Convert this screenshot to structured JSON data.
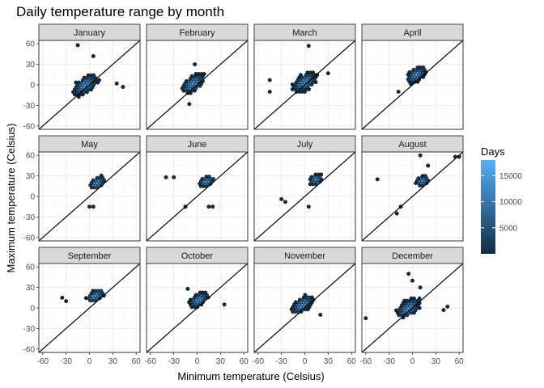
{
  "chart_data": {
    "type": "hexbin",
    "title": "Daily temperature range by month",
    "xlabel": "Minimum temperature (Celsius)",
    "ylabel": "Maximum temperature (Celsius)",
    "xlim": [
      -65,
      65
    ],
    "ylim": [
      -65,
      65
    ],
    "x_ticks": [
      -60,
      -30,
      0,
      30,
      60
    ],
    "y_ticks": [
      -60,
      -30,
      0,
      30,
      60
    ],
    "reference_line": "y = x",
    "grid": true,
    "legend": {
      "title": "Days",
      "position": "right",
      "ticks": [
        5000,
        10000,
        15000
      ],
      "range": [
        0,
        18000
      ],
      "color_low": "#132b43",
      "color_high": "#56b1f7"
    },
    "facets": [
      {
        "month": "January",
        "center": [
          -5,
          0
        ],
        "spread": [
          17,
          13
        ],
        "tilt": 0.55,
        "outliers": [
          [
            -15,
            58
          ],
          [
            35,
            2
          ],
          [
            43,
            -3
          ],
          [
            5,
            42
          ]
        ]
      },
      {
        "month": "February",
        "center": [
          -5,
          2
        ],
        "spread": [
          16,
          13
        ],
        "tilt": 0.55,
        "outliers": [
          [
            -3,
            30
          ],
          [
            -10,
            -28
          ]
        ]
      },
      {
        "month": "March",
        "center": [
          0,
          4
        ],
        "spread": [
          17,
          13
        ],
        "tilt": 0.55,
        "outliers": [
          [
            -45,
            7
          ],
          [
            -45,
            -10
          ],
          [
            5,
            57
          ],
          [
            30,
            17
          ]
        ]
      },
      {
        "month": "April",
        "center": [
          5,
          15
        ],
        "spread": [
          13,
          11
        ],
        "tilt": 0.5,
        "outliers": [
          [
            -18,
            -10
          ]
        ]
      },
      {
        "month": "May",
        "center": [
          10,
          20
        ],
        "spread": [
          11,
          9
        ],
        "tilt": 0.4,
        "outliers": [
          [
            0,
            -15
          ],
          [
            5,
            -15
          ]
        ]
      },
      {
        "month": "June",
        "center": [
          12,
          22
        ],
        "spread": [
          10,
          8
        ],
        "tilt": 0.35,
        "outliers": [
          [
            -40,
            28
          ],
          [
            -30,
            28
          ],
          [
            -15,
            -15
          ],
          [
            15,
            -15
          ],
          [
            20,
            -15
          ]
        ]
      },
      {
        "month": "July",
        "center": [
          14,
          25
        ],
        "spread": [
          9,
          8
        ],
        "tilt": 0.3,
        "outliers": [
          [
            -30,
            -4
          ],
          [
            -25,
            -8
          ],
          [
            5,
            -15
          ]
        ]
      },
      {
        "month": "August",
        "center": [
          13,
          23
        ],
        "spread": [
          9,
          8
        ],
        "tilt": 0.3,
        "outliers": [
          [
            -45,
            25
          ],
          [
            -15,
            -15
          ],
          [
            -20,
            -25
          ],
          [
            10,
            60
          ],
          [
            55,
            58
          ],
          [
            60,
            58
          ],
          [
            20,
            45
          ]
        ]
      },
      {
        "month": "September",
        "center": [
          8,
          18
        ],
        "spread": [
          12,
          9
        ],
        "tilt": 0.45,
        "outliers": [
          [
            -30,
            10
          ],
          [
            -35,
            15
          ]
        ]
      },
      {
        "month": "October",
        "center": [
          2,
          12
        ],
        "spread": [
          13,
          10
        ],
        "tilt": 0.5,
        "outliers": [
          [
            -12,
            28
          ],
          [
            35,
            5
          ]
        ]
      },
      {
        "month": "November",
        "center": [
          -3,
          5
        ],
        "spread": [
          15,
          12
        ],
        "tilt": 0.55,
        "outliers": [
          [
            20,
            -10
          ]
        ]
      },
      {
        "month": "December",
        "center": [
          -5,
          0
        ],
        "spread": [
          16,
          13
        ],
        "tilt": 0.55,
        "outliers": [
          [
            -60,
            -15
          ],
          [
            -5,
            50
          ],
          [
            0,
            40
          ],
          [
            45,
            2
          ],
          [
            40,
            -3
          ],
          [
            10,
            30
          ]
        ]
      }
    ]
  }
}
